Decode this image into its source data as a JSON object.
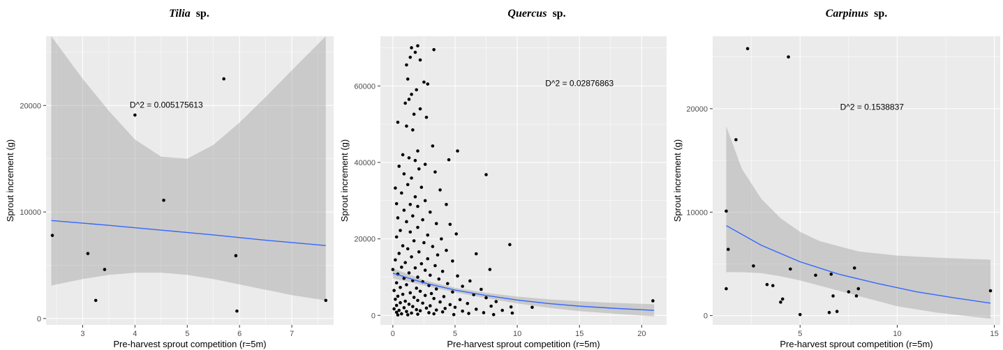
{
  "chart_data": [
    {
      "type": "scatter",
      "title_italic": "Tilia",
      "title_suffix": "sp.",
      "xlabel": "Pre-harvest sprout competition (r=5m)",
      "ylabel": "Sprout increment (g)",
      "annotation": "D^2 = 0.005175613",
      "annotation_pos": [
        4.6,
        19800
      ],
      "xlim": [
        2.3,
        7.8
      ],
      "ylim": [
        -600,
        26500
      ],
      "xticks": [
        3,
        4,
        5,
        6,
        7
      ],
      "yticks": [
        0,
        10000,
        20000
      ],
      "points": [
        [
          2.42,
          7800
        ],
        [
          3.1,
          6100
        ],
        [
          3.25,
          1700
        ],
        [
          3.42,
          4600
        ],
        [
          4.0,
          19100
        ],
        [
          4.55,
          11100
        ],
        [
          5.7,
          22500
        ],
        [
          5.93,
          5900
        ],
        [
          5.95,
          700
        ],
        [
          7.65,
          1700
        ]
      ],
      "fit": [
        [
          2.4,
          9200
        ],
        [
          3.5,
          8750
        ],
        [
          4.5,
          8300
        ],
        [
          5.5,
          7850
        ],
        [
          6.5,
          7350
        ],
        [
          7.65,
          6850
        ]
      ],
      "ci_upper": [
        [
          2.4,
          26500
        ],
        [
          3.0,
          22500
        ],
        [
          3.5,
          19500
        ],
        [
          4.0,
          16800
        ],
        [
          4.5,
          15200
        ],
        [
          5.0,
          15000
        ],
        [
          5.5,
          16300
        ],
        [
          6.0,
          18400
        ],
        [
          6.5,
          20800
        ],
        [
          7.0,
          23300
        ],
        [
          7.65,
          26500
        ]
      ],
      "ci_lower": [
        [
          2.4,
          3100
        ],
        [
          3.0,
          3700
        ],
        [
          3.5,
          4100
        ],
        [
          4.0,
          4300
        ],
        [
          4.5,
          4300
        ],
        [
          5.0,
          4100
        ],
        [
          5.5,
          3700
        ],
        [
          6.0,
          3200
        ],
        [
          6.5,
          2700
        ],
        [
          7.0,
          2200
        ],
        [
          7.65,
          1700
        ]
      ]
    },
    {
      "type": "scatter",
      "title_italic": "Quercus",
      "title_suffix": "sp.",
      "xlabel": "Pre-harvest sprout competition (r=5m)",
      "ylabel": "Sprout increment (g)",
      "annotation": "D^2 = 0.02876863",
      "annotation_pos": [
        15,
        60000
      ],
      "xlim": [
        -1,
        22
      ],
      "ylim": [
        -2500,
        73000
      ],
      "xticks": [
        0,
        5,
        10,
        15,
        20
      ],
      "yticks": [
        0,
        20000,
        40000,
        60000
      ],
      "points": [
        [
          1.5,
          70000
        ],
        [
          2.0,
          70500
        ],
        [
          1.8,
          68800
        ],
        [
          1.4,
          67500
        ],
        [
          2.2,
          66800
        ],
        [
          1.1,
          65500
        ],
        [
          3.3,
          69500
        ],
        [
          1.2,
          61800
        ],
        [
          2.5,
          61000
        ],
        [
          2.8,
          60500
        ],
        [
          1.9,
          59000
        ],
        [
          1.5,
          57800
        ],
        [
          1.3,
          56500
        ],
        [
          1.0,
          55500
        ],
        [
          2.2,
          54000
        ],
        [
          1.7,
          52600
        ],
        [
          2.7,
          51800
        ],
        [
          0.4,
          50500
        ],
        [
          1.1,
          49500
        ],
        [
          1.6,
          48500
        ],
        [
          3.2,
          44300
        ],
        [
          5.2,
          43000
        ],
        [
          2.0,
          43000
        ],
        [
          0.8,
          42000
        ],
        [
          1.3,
          41200
        ],
        [
          1.8,
          40500
        ],
        [
          4.5,
          40700
        ],
        [
          2.6,
          39500
        ],
        [
          0.5,
          39000
        ],
        [
          2.1,
          38300
        ],
        [
          3.4,
          37500
        ],
        [
          0.9,
          37000
        ],
        [
          7.5,
          36800
        ],
        [
          1.5,
          35900
        ],
        [
          0.2,
          33300
        ],
        [
          1.2,
          34200
        ],
        [
          2.3,
          33500
        ],
        [
          0.7,
          32000
        ],
        [
          1.8,
          31000
        ],
        [
          3.8,
          32800
        ],
        [
          2.6,
          30000
        ],
        [
          0.3,
          29200
        ],
        [
          1.4,
          29000
        ],
        [
          2.0,
          28500
        ],
        [
          0.9,
          27500
        ],
        [
          4.3,
          29000
        ],
        [
          3.0,
          27000
        ],
        [
          1.6,
          26000
        ],
        [
          0.4,
          25500
        ],
        [
          2.4,
          25000
        ],
        [
          1.1,
          24500
        ],
        [
          3.5,
          24000
        ],
        [
          4.6,
          23800
        ],
        [
          2.0,
          23000
        ],
        [
          0.6,
          22200
        ],
        [
          1.4,
          21800
        ],
        [
          5.1,
          21300
        ],
        [
          2.8,
          21000
        ],
        [
          0.3,
          20500
        ],
        [
          3.9,
          20000
        ],
        [
          1.7,
          19500
        ],
        [
          2.5,
          19000
        ],
        [
          9.4,
          18500
        ],
        [
          0.8,
          18200
        ],
        [
          3.2,
          18000
        ],
        [
          1.2,
          17400
        ],
        [
          4.3,
          17000
        ],
        [
          2.1,
          16600
        ],
        [
          0.5,
          16200
        ],
        [
          6.7,
          16100
        ],
        [
          3.6,
          15800
        ],
        [
          1.5,
          15300
        ],
        [
          2.8,
          14800
        ],
        [
          0.2,
          14500
        ],
        [
          4.8,
          14200
        ],
        [
          1.0,
          13800
        ],
        [
          2.3,
          13500
        ],
        [
          3.4,
          13000
        ],
        [
          0.7,
          12600
        ],
        [
          1.8,
          12400
        ],
        [
          7.8,
          12000
        ],
        [
          0.0,
          12000
        ],
        [
          2.6,
          11800
        ],
        [
          4.0,
          11500
        ],
        [
          1.3,
          11100
        ],
        [
          0.4,
          10800
        ],
        [
          3.0,
          10500
        ],
        [
          5.2,
          10300
        ],
        [
          2.0,
          10000
        ],
        [
          0.9,
          9700
        ],
        [
          3.7,
          9500
        ],
        [
          1.6,
          9100
        ],
        [
          6.2,
          9000
        ],
        [
          2.4,
          8800
        ],
        [
          0.3,
          8500
        ],
        [
          4.4,
          8300
        ],
        [
          1.1,
          8000
        ],
        [
          2.9,
          7800
        ],
        [
          5.6,
          7600
        ],
        [
          0.6,
          7300
        ],
        [
          1.9,
          7100
        ],
        [
          3.5,
          6900
        ],
        [
          7.1,
          6800
        ],
        [
          0.1,
          6500
        ],
        [
          2.2,
          6300
        ],
        [
          4.8,
          6100
        ],
        [
          1.4,
          5900
        ],
        [
          3.1,
          5700
        ],
        [
          0.8,
          5500
        ],
        [
          6.5,
          5400
        ],
        [
          2.6,
          5200
        ],
        [
          0.4,
          5000
        ],
        [
          4.1,
          4900
        ],
        [
          1.7,
          4700
        ],
        [
          7.5,
          4600
        ],
        [
          3.3,
          4400
        ],
        [
          0.2,
          4200
        ],
        [
          5.4,
          4100
        ],
        [
          2.0,
          3900
        ],
        [
          1.0,
          3700
        ],
        [
          8.3,
          3600
        ],
        [
          3.8,
          3500
        ],
        [
          0.6,
          3300
        ],
        [
          2.4,
          3200
        ],
        [
          6.0,
          3100
        ],
        [
          1.3,
          2900
        ],
        [
          4.6,
          2800
        ],
        [
          0.3,
          2600
        ],
        [
          3.0,
          2500
        ],
        [
          7.9,
          2400
        ],
        [
          1.6,
          2300
        ],
        [
          9.5,
          2200
        ],
        [
          5.0,
          2100
        ],
        [
          0.9,
          2000
        ],
        [
          2.7,
          1900
        ],
        [
          11.2,
          2100
        ],
        [
          4.2,
          1800
        ],
        [
          0.1,
          1700
        ],
        [
          6.7,
          1600
        ],
        [
          1.9,
          1500
        ],
        [
          3.5,
          1400
        ],
        [
          0.5,
          1300
        ],
        [
          8.8,
          1300
        ],
        [
          2.2,
          1200
        ],
        [
          5.6,
          1100
        ],
        [
          1.1,
          1000
        ],
        [
          4.0,
          900
        ],
        [
          0.3,
          800
        ],
        [
          2.9,
          700
        ],
        [
          7.3,
          700
        ],
        [
          1.5,
          600
        ],
        [
          6.1,
          500
        ],
        [
          0.7,
          400
        ],
        [
          3.3,
          400
        ],
        [
          9.6,
          600
        ],
        [
          2.0,
          300
        ],
        [
          4.9,
          200
        ],
        [
          1.2,
          150
        ],
        [
          0.4,
          100
        ],
        [
          8.1,
          200
        ],
        [
          20.9,
          3800
        ]
      ],
      "fit": [
        [
          0,
          11000
        ],
        [
          2.5,
          8500
        ],
        [
          5,
          6600
        ],
        [
          7.5,
          5200
        ],
        [
          10,
          4000
        ],
        [
          12.5,
          3100
        ],
        [
          15,
          2400
        ],
        [
          17.5,
          1900
        ],
        [
          21,
          1300
        ]
      ],
      "ci_upper": [
        [
          0,
          12300
        ],
        [
          2.5,
          9200
        ],
        [
          5,
          7200
        ],
        [
          7.5,
          5900
        ],
        [
          10,
          4900
        ],
        [
          12.5,
          4200
        ],
        [
          15,
          3700
        ],
        [
          17.5,
          3300
        ],
        [
          21,
          2900
        ]
      ],
      "ci_lower": [
        [
          0,
          9700
        ],
        [
          2.5,
          7800
        ],
        [
          5,
          6000
        ],
        [
          7.5,
          4500
        ],
        [
          10,
          3100
        ],
        [
          12.5,
          2000
        ],
        [
          15,
          1100
        ],
        [
          17.5,
          500
        ],
        [
          21,
          -300
        ]
      ]
    },
    {
      "type": "scatter",
      "title_italic": "Carpinus",
      "title_suffix": "sp.",
      "xlabel": "Pre-harvest sprout competition (r=5m)",
      "ylabel": "Sprout increment (g)",
      "annotation": "D^2 = 0.1538837",
      "annotation_pos": [
        8.7,
        19900
      ],
      "xlim": [
        0.5,
        15.3
      ],
      "ylim": [
        -900,
        27000
      ],
      "xticks": [
        5,
        10,
        15
      ],
      "yticks": [
        0,
        10000,
        20000
      ],
      "points": [
        [
          1.2,
          10100
        ],
        [
          1.3,
          6400
        ],
        [
          1.2,
          2600
        ],
        [
          1.7,
          17000
        ],
        [
          2.3,
          25800
        ],
        [
          2.6,
          4800
        ],
        [
          3.3,
          3000
        ],
        [
          3.6,
          2900
        ],
        [
          4.0,
          1300
        ],
        [
          4.1,
          1600
        ],
        [
          4.4,
          25000
        ],
        [
          4.5,
          4500
        ],
        [
          5.0,
          100
        ],
        [
          5.8,
          3900
        ],
        [
          6.5,
          300
        ],
        [
          6.6,
          4000
        ],
        [
          6.7,
          1900
        ],
        [
          6.9,
          400
        ],
        [
          7.5,
          2300
        ],
        [
          7.8,
          4600
        ],
        [
          7.9,
          1900
        ],
        [
          8.0,
          2600
        ],
        [
          14.8,
          2400
        ]
      ],
      "fit": [
        [
          1.2,
          8700
        ],
        [
          3,
          6800
        ],
        [
          5,
          5200
        ],
        [
          7,
          4000
        ],
        [
          9,
          3100
        ],
        [
          11,
          2300
        ],
        [
          13,
          1700
        ],
        [
          14.8,
          1200
        ]
      ],
      "ci_upper": [
        [
          1.2,
          18300
        ],
        [
          2,
          14200
        ],
        [
          3,
          11300
        ],
        [
          4,
          9400
        ],
        [
          5,
          8100
        ],
        [
          6,
          7200
        ],
        [
          8,
          6200
        ],
        [
          10,
          5800
        ],
        [
          12,
          5600
        ],
        [
          14.8,
          5400
        ]
      ],
      "ci_lower": [
        [
          1.2,
          4200
        ],
        [
          2,
          4200
        ],
        [
          3,
          4100
        ],
        [
          4,
          3800
        ],
        [
          5,
          3400
        ],
        [
          6,
          2900
        ],
        [
          8,
          1900
        ],
        [
          10,
          900
        ],
        [
          12,
          300
        ],
        [
          14.8,
          -300
        ]
      ]
    }
  ]
}
